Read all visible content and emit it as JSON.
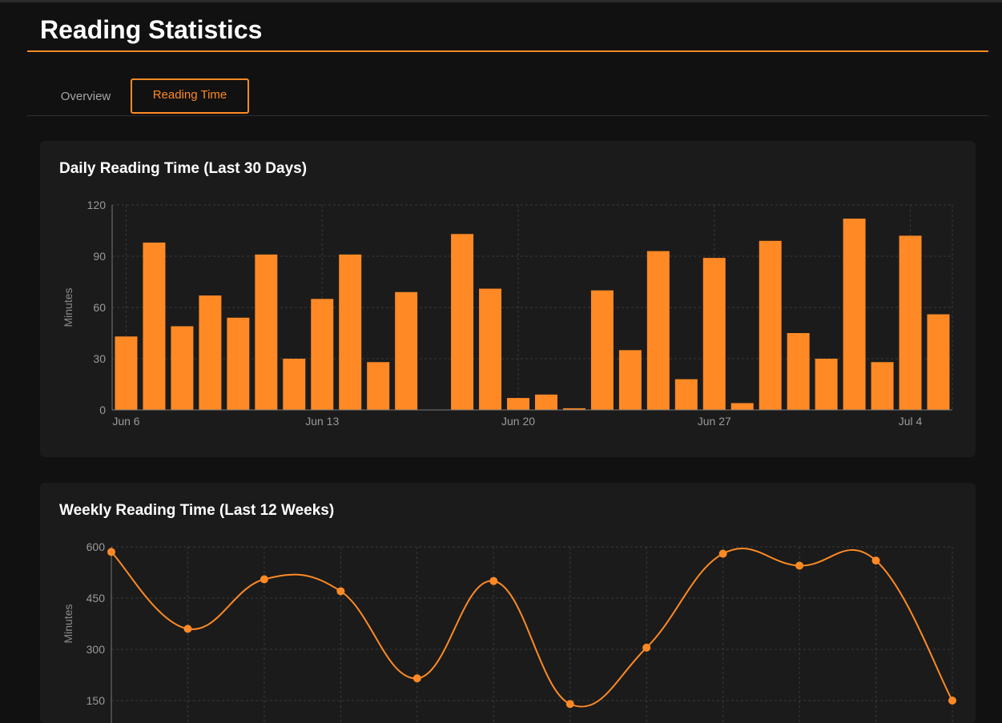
{
  "header": {
    "title": "Reading Statistics"
  },
  "tabs": [
    {
      "label": "Overview",
      "active": false
    },
    {
      "label": "Reading Time",
      "active": true
    }
  ],
  "colors": {
    "accent": "#ff8a25",
    "background": "#111111",
    "card": "#1b1b1b"
  },
  "daily": {
    "title": "Daily Reading Time (Last 30 Days)",
    "chart_data": {
      "type": "bar",
      "title": "Daily Reading Time (Last 30 Days)",
      "xlabel": "",
      "ylabel": "Minutes",
      "ylim": [
        0,
        120
      ],
      "yticks": [
        0,
        30,
        60,
        90,
        120
      ],
      "xtick_labels": [
        {
          "index": 0,
          "label": "Jun 6"
        },
        {
          "index": 7,
          "label": "Jun 13"
        },
        {
          "index": 14,
          "label": "Jun 20"
        },
        {
          "index": 21,
          "label": "Jun 27"
        },
        {
          "index": 28,
          "label": "Jul 4"
        }
      ],
      "categories": [
        "Jun 6",
        "Jun 7",
        "Jun 8",
        "Jun 9",
        "Jun 10",
        "Jun 11",
        "Jun 12",
        "Jun 13",
        "Jun 14",
        "Jun 15",
        "Jun 16",
        "Jun 17",
        "Jun 18",
        "Jun 19",
        "Jun 20",
        "Jun 21",
        "Jun 22",
        "Jun 23",
        "Jun 24",
        "Jun 25",
        "Jun 26",
        "Jun 27",
        "Jun 28",
        "Jun 29",
        "Jun 30",
        "Jul 1",
        "Jul 2",
        "Jul 3",
        "Jul 4",
        "Jul 5"
      ],
      "values": [
        43,
        98,
        49,
        67,
        54,
        91,
        30,
        65,
        91,
        28,
        69,
        0,
        103,
        71,
        7,
        9,
        1,
        70,
        35,
        93,
        18,
        89,
        4,
        99,
        45,
        30,
        112,
        28,
        102,
        56
      ],
      "grid": true,
      "color": "#ff8a25"
    }
  },
  "weekly": {
    "title": "Weekly Reading Time (Last 12 Weeks)",
    "chart_data": {
      "type": "line",
      "title": "Weekly Reading Time (Last 12 Weeks)",
      "xlabel": "",
      "ylabel": "Minutes",
      "ylim": [
        150,
        600
      ],
      "yticks": [
        150,
        300,
        450,
        600
      ],
      "values": [
        585,
        360,
        505,
        470,
        215,
        500,
        140,
        305,
        580,
        545,
        560,
        150
      ],
      "grid": true,
      "color": "#ff8a25"
    }
  }
}
